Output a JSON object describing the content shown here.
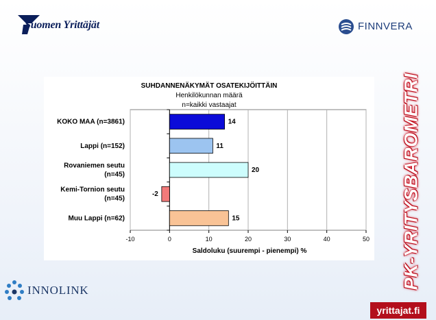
{
  "logos": {
    "suomen_yrittajat": "Suomen Yrittäjät",
    "finnvera": "FINNVERA",
    "innolink": "INNOLINK",
    "yrittajat_fi": "yrittajat.fi"
  },
  "side_title": "PK-YRITYSBAROMETRI",
  "colors": {
    "brand_red": "#b30f1c",
    "navy": "#0a1e5a"
  },
  "chart_data": {
    "type": "bar",
    "orientation": "horizontal",
    "title": "SUHDANNENÄKYMÄT OSATEKIJÖITTÄIN",
    "subtitle_lines": [
      "Henkilökunnan määrä",
      "n=kaikki vastaajat"
    ],
    "categories": [
      {
        "label_bold": "KOKO MAA",
        "label_rest": " (n=3861)",
        "label_lines": [
          "KOKO MAA (n=3861)"
        ]
      },
      {
        "label_bold": "",
        "label_rest": "Lappi (n=152)",
        "label_lines": [
          "Lappi (n=152)"
        ]
      },
      {
        "label_bold": "",
        "label_rest": "Rovaniemen seutu (n=45)",
        "label_lines": [
          "Rovaniemen seutu",
          "(n=45)"
        ]
      },
      {
        "label_bold": "",
        "label_rest": "Kemi-Tornion seutu (n=45)",
        "label_lines": [
          "Kemi-Tornion seutu",
          "(n=45)"
        ]
      },
      {
        "label_bold": "",
        "label_rest": "Muu Lappi (n=62)",
        "label_lines": [
          "Muu Lappi (n=62)"
        ]
      }
    ],
    "values": [
      14,
      11,
      20,
      -2,
      15
    ],
    "value_labels": [
      "14",
      "11",
      "20",
      "-2",
      "15"
    ],
    "bar_colors": [
      "#0b0bd8",
      "#9cc4f0",
      "#cdfdfd",
      "#f27a7a",
      "#f9c396"
    ],
    "bar_strokes": [
      "#000000",
      "#000000",
      "#000000",
      "#000000",
      "#000000"
    ],
    "xlim": [
      -10,
      50
    ],
    "xticks": [
      -10,
      0,
      10,
      20,
      30,
      40,
      50
    ],
    "xlabel": "Saldoluku (suurempi - pienempi) %",
    "grid": true
  }
}
